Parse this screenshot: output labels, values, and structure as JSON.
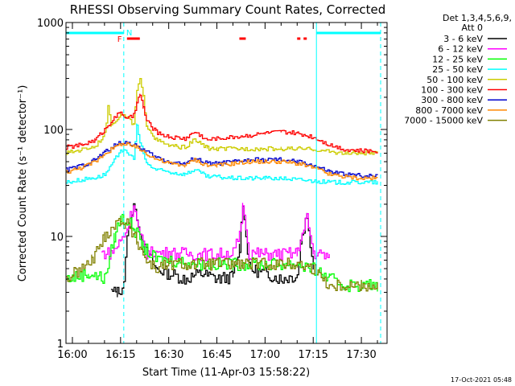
{
  "title": "RHESSI Observing Summary Count Rates, Corrected",
  "footer_date": "17-Oct-2021 05:48",
  "chart_data": {
    "type": "line",
    "title": "RHESSI Observing Summary Count Rates, Corrected",
    "xlabel": "Start Time (11-Apr-03 15:58:22)",
    "ylabel": "Corrected Count Rate (s⁻¹ detector⁻¹)",
    "y_scale": "log",
    "xlim": [
      "15:58",
      "17:38"
    ],
    "ylim": [
      1,
      1000
    ],
    "x_ticks": [
      "16:00",
      "16:15",
      "16:30",
      "16:45",
      "17:00",
      "17:15",
      "17:30"
    ],
    "y_ticks": [
      "1",
      "10",
      "100",
      "1000"
    ],
    "legend": {
      "placement": "top-right, outside plot",
      "header_line1": "Det 1,3,4,5,6,9,",
      "header_line2": "Att 0"
    },
    "flags": {
      "N_label": "N",
      "F_label": "F",
      "night_color": "#00ffff",
      "flare_color": "#ff0000",
      "night_intervals": [
        [
          "15:58",
          "16:16"
        ],
        [
          "17:16",
          "17:36"
        ]
      ],
      "flare_intervals": [
        [
          "16:17",
          "16:21"
        ],
        [
          "16:52",
          "16:54"
        ],
        [
          "17:10",
          "17:11"
        ],
        [
          "17:12",
          "17:13"
        ]
      ],
      "night_boundaries": [
        "16:16",
        "17:16",
        "17:36"
      ]
    },
    "series": [
      {
        "name": "3 - 6 keV",
        "color": "#000000",
        "x": [
          "15:58",
          "16:11",
          "16:12",
          "16:14",
          "16:16",
          "16:17",
          "16:19",
          "16:22",
          "16:26",
          "16:30",
          "16:35",
          "16:40",
          "16:45",
          "16:50",
          "16:52",
          "16:53",
          "16:55",
          "17:00",
          "17:05",
          "17:10",
          "17:11",
          "17:13",
          "17:15",
          "17:16"
        ],
        "y": [
          null,
          null,
          3,
          3,
          3.5,
          9.5,
          20,
          8,
          5,
          4.5,
          4,
          4.5,
          4,
          4.2,
          8,
          20,
          5,
          4.5,
          4,
          4.3,
          9,
          16,
          5,
          null
        ]
      },
      {
        "name": "6 - 12 keV",
        "color": "#ff00ff",
        "x": [
          "16:09",
          "16:12",
          "16:15",
          "16:17",
          "16:19",
          "16:21",
          "16:23",
          "16:26",
          "16:30",
          "16:40",
          "16:45",
          "16:50",
          "16:52",
          "16:53",
          "16:55",
          "17:00",
          "17:05",
          "17:10",
          "17:11",
          "17:13",
          "17:15",
          "17:20"
        ],
        "y": [
          7,
          7,
          9,
          12,
          20,
          10,
          7,
          7,
          7,
          6.8,
          6.8,
          7,
          10,
          20,
          7,
          6.8,
          6.8,
          7,
          9,
          15,
          7,
          6.5
        ]
      },
      {
        "name": "12 - 25 keV",
        "color": "#00ff00",
        "x": [
          "15:58",
          "16:05",
          "16:10",
          "16:13",
          "16:15",
          "16:17",
          "16:19",
          "16:22",
          "16:26",
          "16:30",
          "16:40",
          "16:50",
          "17:00",
          "17:10",
          "17:15",
          "17:20",
          "17:25",
          "17:30",
          "17:35"
        ],
        "y": [
          4,
          4.5,
          4,
          10,
          15,
          14,
          12,
          8,
          6,
          6,
          5.5,
          5.5,
          5.5,
          5.5,
          5,
          4,
          3.5,
          3.5,
          3.5
        ]
      },
      {
        "name": "25 - 50 keV",
        "color": "#00ffff",
        "x": [
          "15:58",
          "16:03",
          "16:08",
          "16:10",
          "16:12",
          "16:15",
          "16:17",
          "16:19",
          "16:20",
          "16:21",
          "16:23",
          "16:26",
          "16:30",
          "16:35",
          "16:38",
          "16:42",
          "16:45",
          "16:50",
          "16:55",
          "17:00",
          "17:05",
          "17:10",
          "17:15",
          "17:20",
          "17:25",
          "17:30",
          "17:35"
        ],
        "y": [
          32,
          34,
          36,
          38,
          45,
          65,
          60,
          55,
          110,
          75,
          48,
          42,
          40,
          38,
          42,
          36,
          36,
          35,
          35,
          35,
          35,
          34,
          33,
          32,
          32,
          32,
          32
        ]
      },
      {
        "name": "50 - 100 keV",
        "color": "#cccc00",
        "x": [
          "15:58",
          "16:03",
          "16:07",
          "16:10",
          "16:11",
          "16:12",
          "16:15",
          "16:17",
          "16:19",
          "16:20",
          "16:21",
          "16:22",
          "16:23",
          "16:26",
          "16:30",
          "16:35",
          "16:38",
          "16:42",
          "16:45",
          "16:50",
          "16:55",
          "17:00",
          "17:05",
          "17:10",
          "17:15",
          "17:20",
          "17:25",
          "17:30",
          "17:35"
        ],
        "y": [
          60,
          65,
          70,
          90,
          160,
          110,
          140,
          130,
          110,
          230,
          290,
          200,
          110,
          80,
          70,
          68,
          80,
          67,
          66,
          66,
          66,
          66,
          66,
          66,
          65,
          62,
          60,
          60,
          60
        ]
      },
      {
        "name": "100 - 300 keV",
        "color": "#ff0000",
        "x": [
          "15:58",
          "16:03",
          "16:07",
          "16:10",
          "16:12",
          "16:15",
          "16:17",
          "16:19",
          "16:20",
          "16:21",
          "16:22",
          "16:23",
          "16:26",
          "16:30",
          "16:35",
          "16:38",
          "16:42",
          "16:45",
          "16:50",
          "16:55",
          "17:00",
          "17:05",
          "17:10",
          "17:15",
          "17:20",
          "17:25",
          "17:30",
          "17:35"
        ],
        "y": [
          68,
          72,
          80,
          100,
          120,
          145,
          125,
          135,
          180,
          210,
          160,
          120,
          95,
          85,
          82,
          95,
          80,
          82,
          85,
          88,
          92,
          95,
          92,
          85,
          72,
          65,
          63,
          63
        ]
      },
      {
        "name": "300 - 800 keV",
        "color": "#0000cc",
        "x": [
          "15:58",
          "16:03",
          "16:07",
          "16:10",
          "16:15",
          "16:17",
          "16:20",
          "16:23",
          "16:26",
          "16:30",
          "16:35",
          "16:38",
          "16:42",
          "16:45",
          "16:50",
          "16:55",
          "17:00",
          "17:05",
          "17:10",
          "17:15",
          "17:20",
          "17:25",
          "17:30",
          "17:35"
        ],
        "y": [
          42,
          46,
          52,
          62,
          76,
          75,
          70,
          62,
          55,
          50,
          48,
          54,
          48,
          48,
          50,
          52,
          52,
          52,
          50,
          46,
          40,
          38,
          37,
          37
        ]
      },
      {
        "name": "800 - 7000 keV",
        "color": "#ff8800",
        "x": [
          "15:58",
          "16:03",
          "16:07",
          "16:10",
          "16:15",
          "16:17",
          "16:20",
          "16:23",
          "16:26",
          "16:30",
          "16:35",
          "16:38",
          "16:42",
          "16:45",
          "16:50",
          "16:55",
          "17:00",
          "17:05",
          "17:10",
          "17:15",
          "17:20",
          "17:25",
          "17:30",
          "17:35"
        ],
        "y": [
          40,
          44,
          50,
          60,
          73,
          72,
          68,
          60,
          53,
          48,
          46,
          52,
          46,
          46,
          48,
          50,
          50,
          50,
          48,
          44,
          38,
          36,
          35,
          35
        ]
      },
      {
        "name": "7000 - 15000 keV",
        "color": "#808000",
        "x": [
          "15:58",
          "16:03",
          "16:06",
          "16:10",
          "16:12",
          "16:15",
          "16:17",
          "16:20",
          "16:23",
          "16:26",
          "16:30",
          "16:40",
          "16:50",
          "17:00",
          "17:10",
          "17:15",
          "17:20",
          "17:25",
          "17:30",
          "17:35"
        ],
        "y": [
          4,
          5,
          6,
          10,
          12,
          14,
          13,
          9,
          6,
          5,
          5.5,
          5.5,
          5.5,
          5.5,
          5.5,
          5,
          3.5,
          3.5,
          3.5,
          3.5
        ]
      }
    ]
  }
}
